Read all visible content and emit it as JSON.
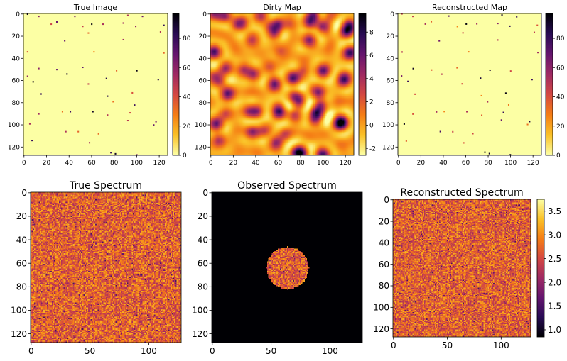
{
  "chart_data": [
    {
      "type": "heatmap",
      "title": "True Image",
      "xticks": [
        0,
        20,
        40,
        60,
        80,
        100,
        120
      ],
      "yticks": [
        0,
        20,
        40,
        60,
        80,
        100,
        120
      ],
      "xlim": [
        0,
        127
      ],
      "ylim": [
        127,
        0
      ],
      "colormap": "inferno_r",
      "colorbar": {
        "ticks": [
          0,
          20,
          40,
          60,
          80
        ],
        "range": [
          0,
          97
        ]
      },
      "description": "sparse point sources on uniform background",
      "points": [
        [
          3,
          0
        ],
        [
          13,
          2
        ],
        [
          45,
          2
        ],
        [
          92,
          1
        ],
        [
          105,
          2
        ],
        [
          29,
          7
        ],
        [
          24,
          9
        ],
        [
          60,
          9
        ],
        [
          70,
          9
        ],
        [
          88,
          8
        ],
        [
          52,
          11
        ],
        [
          99,
          11
        ],
        [
          124,
          10
        ],
        [
          57,
          17
        ],
        [
          121,
          16
        ],
        [
          36,
          24
        ],
        [
          88,
          23
        ],
        [
          3,
          34
        ],
        [
          62,
          34
        ],
        [
          124,
          35
        ],
        [
          13,
          49
        ],
        [
          29,
          50
        ],
        [
          52,
          48
        ],
        [
          82,
          51
        ],
        [
          100,
          51
        ],
        [
          3,
          56
        ],
        [
          38,
          54
        ],
        [
          73,
          58
        ],
        [
          119,
          59
        ],
        [
          8,
          61
        ],
        [
          57,
          63
        ],
        [
          15,
          72
        ],
        [
          74,
          74
        ],
        [
          96,
          71
        ],
        [
          79,
          79
        ],
        [
          98,
          82
        ],
        [
          13,
          90
        ],
        [
          94,
          89
        ],
        [
          61,
          88
        ],
        [
          34,
          88
        ],
        [
          41,
          88
        ],
        [
          74,
          91
        ],
        [
          92,
          96
        ],
        [
          117,
          97
        ],
        [
          5,
          99
        ],
        [
          115,
          100
        ],
        [
          37,
          106
        ],
        [
          48,
          106
        ],
        [
          66,
          108
        ],
        [
          7,
          114
        ],
        [
          58,
          116
        ],
        [
          81,
          126
        ],
        [
          100,
          127
        ],
        [
          77,
          125
        ]
      ]
    },
    {
      "type": "heatmap",
      "title": "Dirty Map",
      "xticks": [
        0,
        20,
        40,
        60,
        80,
        100,
        120
      ],
      "yticks": [
        0,
        20,
        40,
        60,
        80,
        100,
        120
      ],
      "xlim": [
        0,
        127
      ],
      "ylim": [
        127,
        0
      ],
      "colormap": "inferno_r",
      "colorbar": {
        "ticks": [
          -2,
          0,
          2,
          4,
          6,
          8
        ],
        "range": [
          -2.6,
          9.6
        ]
      },
      "description": "blurred sources with ringing sidelobes"
    },
    {
      "type": "heatmap",
      "title": "Reconstructed Map",
      "xticks": [
        0,
        20,
        40,
        60,
        80,
        100,
        120
      ],
      "yticks": [
        0,
        20,
        40,
        60,
        80,
        100,
        120
      ],
      "xlim": [
        0,
        127
      ],
      "ylim": [
        127,
        0
      ],
      "colormap": "inferno_r",
      "colorbar": {
        "ticks": [
          0,
          20,
          40,
          60,
          80
        ],
        "range": [
          0,
          97
        ]
      }
    },
    {
      "type": "heatmap",
      "title": "True Spectrum",
      "xticks": [
        0,
        50,
        100
      ],
      "yticks": [
        0,
        20,
        40,
        60,
        80,
        100,
        120
      ],
      "xlim": [
        0,
        127
      ],
      "ylim": [
        127,
        0
      ],
      "colormap": "inferno"
    },
    {
      "type": "heatmap",
      "title": "Observed Spectrum",
      "xticks": [
        0,
        50,
        100
      ],
      "yticks": [
        0,
        20,
        40,
        60,
        80,
        100,
        120
      ],
      "xlim": [
        0,
        127
      ],
      "ylim": [
        127,
        0
      ],
      "colormap": "inferno",
      "mask": {
        "shape": "circle",
        "center": [
          64,
          64
        ],
        "radius": 18
      }
    },
    {
      "type": "heatmap",
      "title": "Reconstructed Spectrum",
      "xticks": [
        0,
        50,
        100
      ],
      "yticks": [
        0,
        20,
        40,
        60,
        80,
        100,
        120
      ],
      "xlim": [
        0,
        127
      ],
      "ylim": [
        127,
        0
      ],
      "colormap": "inferno",
      "colorbar": {
        "ticks": [
          1.0,
          1.5,
          2.0,
          2.5,
          3.0,
          3.5
        ],
        "tick_labels": [
          "1.0",
          "1.5",
          "2.0",
          "2.5",
          "3.0",
          "3.5"
        ],
        "range": [
          0.85,
          3.75
        ]
      }
    }
  ]
}
